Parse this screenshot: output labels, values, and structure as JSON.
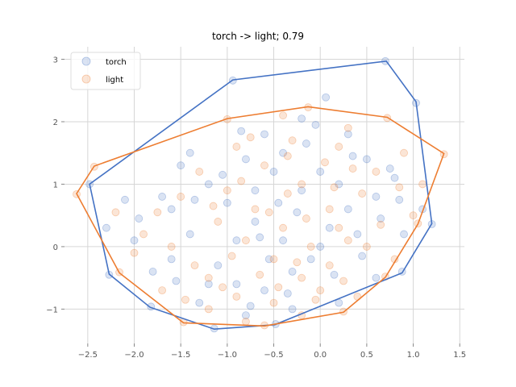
{
  "chart_data": {
    "type": "scatter",
    "title": "torch -> light; 0.79",
    "xlabel": "",
    "ylabel": "",
    "xlim": [
      -2.75,
      1.55
    ],
    "ylim": [
      -1.55,
      3.2
    ],
    "xticks": [
      -2.5,
      -2.0,
      -1.5,
      -1.0,
      -0.5,
      0.0,
      0.5,
      1.0,
      1.5
    ],
    "xtick_labels": [
      "−2.5",
      "−2.0",
      "−1.5",
      "−1.0",
      "−0.5",
      "0.0",
      "0.5",
      "1.0",
      "1.5"
    ],
    "yticks": [
      -1,
      0,
      1,
      2,
      3
    ],
    "ytick_labels": [
      "−1",
      "0",
      "1",
      "2",
      "3"
    ],
    "grid": true,
    "legend_position": "top-left",
    "series": [
      {
        "name": "torch",
        "color": "#4472c4",
        "hull": [
          [
            0.71,
            2.97
          ],
          [
            1.03,
            2.32
          ],
          [
            1.2,
            0.37
          ],
          [
            0.88,
            -0.42
          ],
          [
            -0.49,
            -1.25
          ],
          [
            -1.14,
            -1.32
          ],
          [
            -1.83,
            -0.97
          ],
          [
            -2.27,
            -0.44
          ],
          [
            -2.48,
            1.0
          ],
          [
            -0.94,
            2.67
          ]
        ],
        "points": [
          [
            0.7,
            2.97
          ],
          [
            1.03,
            2.3
          ],
          [
            1.2,
            0.36
          ],
          [
            0.88,
            -0.4
          ],
          [
            -0.48,
            -1.24
          ],
          [
            -1.14,
            -1.31
          ],
          [
            -1.82,
            -0.96
          ],
          [
            -2.27,
            -0.45
          ],
          [
            -2.48,
            1.0
          ],
          [
            -0.94,
            2.66
          ],
          [
            0.06,
            2.39
          ],
          [
            -0.2,
            2.05
          ],
          [
            -0.6,
            1.8
          ],
          [
            -1.4,
            1.5
          ],
          [
            -1.5,
            1.3
          ],
          [
            -1.7,
            0.8
          ],
          [
            -2.1,
            0.75
          ],
          [
            -1.6,
            0.6
          ],
          [
            -2.0,
            0.1
          ],
          [
            -1.8,
            -0.4
          ],
          [
            -1.3,
            -0.9
          ],
          [
            -0.8,
            -1.1
          ],
          [
            -0.3,
            -1.0
          ],
          [
            0.2,
            -0.9
          ],
          [
            0.6,
            -0.5
          ],
          [
            0.9,
            0.2
          ],
          [
            1.1,
            0.6
          ],
          [
            0.8,
            1.1
          ],
          [
            0.5,
            1.4
          ],
          [
            0.3,
            1.8
          ],
          [
            -1.2,
            1.0
          ],
          [
            -1.0,
            0.7
          ],
          [
            -0.7,
            0.4
          ],
          [
            -0.4,
            0.1
          ],
          [
            -0.1,
            -0.2
          ],
          [
            0.1,
            0.3
          ],
          [
            0.3,
            0.6
          ],
          [
            -0.2,
            0.9
          ],
          [
            -0.5,
            1.2
          ],
          [
            -0.8,
            1.4
          ],
          [
            -1.1,
            -0.3
          ],
          [
            -0.9,
            -0.6
          ],
          [
            -0.6,
            -0.7
          ],
          [
            -0.3,
            -0.4
          ],
          [
            0.0,
            0.0
          ],
          [
            0.4,
            0.2
          ],
          [
            0.6,
            0.8
          ],
          [
            -1.4,
            0.2
          ],
          [
            -1.6,
            -0.2
          ],
          [
            -1.2,
            -0.6
          ],
          [
            -0.7,
            0.9
          ],
          [
            -0.4,
            1.5
          ],
          [
            0.0,
            1.2
          ],
          [
            0.2,
            1.0
          ],
          [
            -0.9,
            0.1
          ],
          [
            -0.55,
            -0.2
          ],
          [
            -0.25,
            0.55
          ],
          [
            0.15,
            -0.45
          ],
          [
            -1.35,
            0.75
          ],
          [
            -0.15,
            1.65
          ],
          [
            0.45,
            -0.15
          ],
          [
            -0.75,
            -0.95
          ],
          [
            -1.05,
            1.15
          ],
          [
            0.65,
            0.45
          ],
          [
            -0.45,
            0.7
          ],
          [
            -1.55,
            -0.55
          ],
          [
            0.35,
            1.45
          ],
          [
            -0.35,
            -0.75
          ],
          [
            -0.85,
            1.85
          ],
          [
            0.85,
            0.75
          ],
          [
            -2.3,
            0.3
          ],
          [
            -1.95,
            0.45
          ],
          [
            0.75,
            1.25
          ],
          [
            -0.05,
            1.95
          ],
          [
            -0.65,
            0.15
          ]
        ]
      },
      {
        "name": "light",
        "color": "#ed7d31",
        "hull": [
          [
            -0.13,
            2.24
          ],
          [
            0.72,
            2.07
          ],
          [
            1.33,
            1.49
          ],
          [
            1.05,
            0.36
          ],
          [
            0.7,
            -0.49
          ],
          [
            0.25,
            -1.05
          ],
          [
            -0.6,
            -1.27
          ],
          [
            -1.47,
            -1.22
          ],
          [
            -2.16,
            -0.42
          ],
          [
            -2.62,
            0.85
          ],
          [
            -2.43,
            1.29
          ],
          [
            -1.0,
            2.05
          ]
        ],
        "points": [
          [
            -0.13,
            2.23
          ],
          [
            0.72,
            2.06
          ],
          [
            1.33,
            1.48
          ],
          [
            1.05,
            0.37
          ],
          [
            0.7,
            -0.48
          ],
          [
            0.25,
            -1.04
          ],
          [
            -0.6,
            -1.26
          ],
          [
            -1.47,
            -1.21
          ],
          [
            -2.16,
            -0.41
          ],
          [
            -2.62,
            0.84
          ],
          [
            -2.43,
            1.28
          ],
          [
            -1.0,
            2.04
          ],
          [
            -0.4,
            2.1
          ],
          [
            0.3,
            1.9
          ],
          [
            0.9,
            1.5
          ],
          [
            1.1,
            1.0
          ],
          [
            -1.9,
            0.2
          ],
          [
            -2.0,
            -0.1
          ],
          [
            -1.7,
            -0.7
          ],
          [
            -1.2,
            -1.0
          ],
          [
            -0.8,
            -1.2
          ],
          [
            -0.2,
            -1.1
          ],
          [
            0.4,
            -0.8
          ],
          [
            0.8,
            -0.2
          ],
          [
            1.0,
            0.5
          ],
          [
            0.6,
            1.2
          ],
          [
            0.2,
            1.6
          ],
          [
            -0.3,
            1.7
          ],
          [
            -0.9,
            1.6
          ],
          [
            -1.3,
            1.2
          ],
          [
            -1.5,
            0.8
          ],
          [
            -1.1,
            0.4
          ],
          [
            -0.8,
            0.1
          ],
          [
            -0.5,
            -0.2
          ],
          [
            -0.2,
            -0.5
          ],
          [
            0.1,
            -0.3
          ],
          [
            0.3,
            0.1
          ],
          [
            0.1,
            0.6
          ],
          [
            -0.2,
            1.0
          ],
          [
            -0.6,
            1.3
          ],
          [
            -1.0,
            0.9
          ],
          [
            -0.7,
            0.6
          ],
          [
            -0.4,
            0.3
          ],
          [
            -0.1,
            0.0
          ],
          [
            0.2,
            0.3
          ],
          [
            -1.2,
            -0.5
          ],
          [
            -0.9,
            -0.8
          ],
          [
            -0.5,
            -0.9
          ],
          [
            0.0,
            -0.7
          ],
          [
            0.5,
            0.0
          ],
          [
            -1.6,
            0.0
          ],
          [
            -1.35,
            -0.3
          ],
          [
            -0.65,
            -0.45
          ],
          [
            -0.35,
            0.85
          ],
          [
            0.05,
            1.35
          ],
          [
            0.45,
            0.85
          ],
          [
            -0.85,
            1.05
          ],
          [
            -1.15,
            0.65
          ],
          [
            -0.25,
            -0.25
          ],
          [
            0.25,
            -0.55
          ],
          [
            -0.55,
            0.55
          ],
          [
            -0.95,
            -0.15
          ],
          [
            0.65,
            0.35
          ],
          [
            -0.15,
            0.45
          ],
          [
            -1.75,
            0.55
          ],
          [
            -0.45,
            -0.65
          ],
          [
            0.15,
            0.95
          ],
          [
            -0.75,
            1.75
          ],
          [
            -2.2,
            0.55
          ],
          [
            0.85,
            0.95
          ],
          [
            -1.45,
            -0.85
          ],
          [
            -0.05,
            -0.85
          ],
          [
            0.35,
            1.25
          ],
          [
            -0.35,
            1.45
          ],
          [
            -1.05,
            -0.65
          ]
        ]
      }
    ]
  }
}
